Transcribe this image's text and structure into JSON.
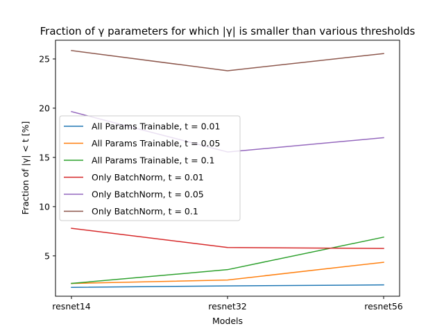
{
  "chart_data": {
    "type": "line",
    "title": "Fraction of γ parameters for which |γ| is smaller than various thresholds",
    "xlabel": "Models",
    "ylabel": "Fraction of |γ| < t [%]",
    "categories": [
      "resnet14",
      "resnet32",
      "resnet56"
    ],
    "yticks": [
      5,
      10,
      15,
      20,
      25
    ],
    "ylim": [
      0.9,
      26.9
    ],
    "grid": false,
    "legend_position": "center-left",
    "series": [
      {
        "name": "All Params Trainable, t = 0.01",
        "color": "#1f77b4",
        "values": [
          1.8,
          1.95,
          2.05
        ]
      },
      {
        "name": "All Params Trainable, t = 0.05",
        "color": "#ff7f0e",
        "values": [
          2.2,
          2.55,
          4.35
        ]
      },
      {
        "name": "All Params Trainable, t = 0.1",
        "color": "#2ca02c",
        "values": [
          2.2,
          3.6,
          6.9
        ]
      },
      {
        "name": "Only BatchNorm, t = 0.01",
        "color": "#d62728",
        "values": [
          7.8,
          5.85,
          5.75
        ]
      },
      {
        "name": "Only BatchNorm, t = 0.05",
        "color": "#9467bd",
        "values": [
          19.65,
          15.55,
          17.0
        ]
      },
      {
        "name": "Only BatchNorm, t = 0.1",
        "color": "#8c564b",
        "values": [
          25.85,
          23.8,
          25.55
        ]
      }
    ]
  }
}
